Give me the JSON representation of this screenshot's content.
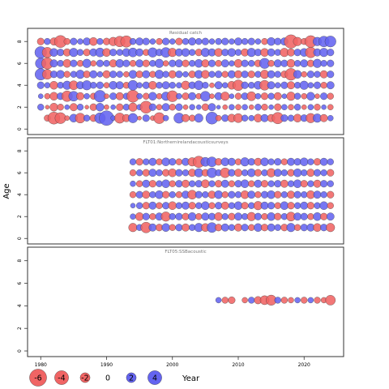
{
  "chart_data": {
    "type": "scatter",
    "subtype": "bubble-residuals",
    "ylabel": "Age",
    "xlabel": "Year",
    "xlim": [
      1978,
      2026
    ],
    "x_ticks": [
      1980,
      1990,
      2000,
      2010,
      2020
    ],
    "colors": {
      "positive": "#6464f0",
      "negative": "#f06464",
      "outline": "#3c3c3c"
    },
    "legend": {
      "placement": "bottom-left",
      "items": [
        {
          "label": "-6",
          "value": -6
        },
        {
          "label": "-4",
          "value": -4
        },
        {
          "label": "-2",
          "value": -2
        },
        {
          "label": "0",
          "value": 0
        },
        {
          "label": "2",
          "value": 2
        },
        {
          "label": "4",
          "value": 4
        }
      ]
    },
    "panels": [
      {
        "title": "Residual catch",
        "ylim": [
          -0.5,
          9.2
        ],
        "y_ticks": [
          0,
          2,
          4,
          6,
          8
        ],
        "year_start": 1980,
        "ages": [
          1,
          2,
          3,
          4,
          5,
          6,
          7,
          8
        ],
        "residuals": [
          [
            0,
            0,
            0,
            0,
            0,
            0,
            0,
            0,
            0,
            0,
            0,
            0,
            0,
            0,
            0,
            0,
            0,
            0,
            0,
            0,
            0,
            0,
            0,
            0,
            0,
            0,
            0,
            0,
            0,
            0,
            0,
            0,
            0,
            0,
            0,
            0,
            0,
            0,
            0,
            0,
            0,
            0,
            0,
            0,
            0
          ],
          [
            0,
            -0.5,
            -1.8,
            -1.5,
            -0.3,
            0.8,
            -1.2,
            0.5,
            -0.6,
            1.4,
            2.6,
            0.3,
            -1.3,
            -0.7,
            1.1,
            -0.2,
            0.6,
            -0.3,
            -1.5,
            0.4,
            0,
            1.3,
            -0.7,
            -0.5,
            0.9,
            0,
            1.8,
            -0.4,
            0.6,
            -0.8,
            -1,
            0.5,
            0.4,
            -0.8,
            0.7,
            -0.7,
            -1.6,
            0.6,
            0.5,
            -0.8,
            0.6,
            -1.1,
            0.9,
            -0.7,
            0.4
          ],
          [
            0.5,
            -0.2,
            -0.8,
            -0.5,
            0.3,
            -0.7,
            0.5,
            -0.2,
            -0.6,
            0.8,
            -0.3,
            0.3,
            -0.6,
            0.5,
            -0.9,
            0.4,
            -1.8,
            0.6,
            -0.4,
            0.7,
            -0.5,
            0.6,
            -0.3,
            0.4,
            0.3,
            -0.6,
            0.7,
            0.2,
            -0.3,
            0.4,
            -0.4,
            0.4,
            -0.3,
            0.5,
            -0.5,
            0.3,
            -0.6,
            0.4,
            -0.4,
            0.5,
            -0.3,
            0.4,
            -0.5,
            0.3,
            -0.4
          ],
          [
            0.3,
            -0.4,
            -0.8,
            0.6,
            -1.4,
            1.2,
            -0.7,
            0.4,
            -0.5,
            1.7,
            -0.3,
            0.6,
            -0.7,
            0.5,
            -1.8,
            0.4,
            -0.5,
            0.8,
            -0.4,
            0.9,
            -1.5,
            0.4,
            -0.6,
            0.7,
            -0.4,
            1.2,
            -0.3,
            0.7,
            -0.9,
            0.3,
            -0.5,
            0.6,
            -1,
            0.4,
            -0.6,
            0.5,
            -0.7,
            0.3,
            -0.9,
            0.5,
            -0.4,
            0.8,
            -0.3,
            0.6,
            -0.5
          ],
          [
            0.6,
            0.4,
            -0.8,
            0.5,
            0.9,
            -1,
            0.7,
            1.1,
            0.5,
            0.6,
            -0.4,
            0.8,
            0.7,
            -0.5,
            1.2,
            0.4,
            0.6,
            -0.8,
            0.5,
            0.7,
            0.5,
            0.4,
            -0.9,
            0.6,
            1,
            0.5,
            -0.3,
            0.7,
            0.4,
            -0.8,
            -1.4,
            0.6,
            0.5,
            0.8,
            -1.2,
            0.7,
            0.4,
            0.6,
            -0.7,
            0.5,
            0.9,
            0.4,
            0.6,
            -0.5,
            0.7
          ],
          [
            1.6,
            -1.2,
            0.6,
            0.8,
            -0.5,
            0.5,
            0.9,
            -0.6,
            0.7,
            0.4,
            -0.7,
            0.6,
            0.5,
            -0.4,
            0.8,
            -0.6,
            0.7,
            -0.5,
            0.9,
            0.5,
            -0.7,
            0.6,
            0.4,
            -0.6,
            0.8,
            -0.8,
            0.5,
            0.6,
            -0.5,
            0.7,
            -0.7,
            0.6,
            -0.6,
            0.5,
            -0.9,
            0.7,
            0.5,
            -0.6,
            -1.7,
            0.8,
            -0.4,
            0.6,
            0.5,
            -0.7,
            0.6
          ],
          [
            1.4,
            -1.6,
            0.7,
            0.5,
            -0.8,
            0.6,
            -0.5,
            0.9,
            -0.4,
            0.6,
            0.5,
            -0.7,
            0.8,
            0.6,
            -0.5,
            0.7,
            -0.6,
            0.5,
            0.9,
            -0.4,
            0.6,
            0.7,
            -0.6,
            0.5,
            0.8,
            -0.7,
            0.6,
            -0.5,
            0.7,
            0.4,
            -0.8,
            0.6,
            0.5,
            -0.6,
            1.3,
            -0.5,
            0.7,
            0.6,
            -0.8,
            0.5,
            0.7,
            -0.6,
            0.9,
            0.5,
            0.6
          ],
          [
            1.7,
            -1.3,
            0.8,
            0.6,
            -0.7,
            0.9,
            0.5,
            -0.6,
            0.7,
            1,
            -0.8,
            0.6,
            0.5,
            0.8,
            1,
            0.7,
            -0.5,
            1.1,
            0.6,
            1.2,
            -0.9,
            0.7,
            0.8,
            0.5,
            -0.6,
            0.9,
            0.7,
            -0.8,
            0.6,
            0.8,
            0.5,
            -0.7,
            0.9,
            0.6,
            -0.8,
            0.7,
            0.5,
            -0.9,
            -0.7,
            0.6,
            0.8,
            -1.4,
            0.7,
            0.9,
            0.6
          ],
          [
            -0.6,
            0.5,
            -0.7,
            -1.8,
            -0.5,
            0.6,
            0.4,
            0.7,
            -0.8,
            0.5,
            -0.6,
            -0.9,
            -1.4,
            -1.6,
            0.5,
            0.7,
            0.6,
            0.4,
            -0.5,
            0.6,
            0.4,
            -0.6,
            0.5,
            0.7,
            0.5,
            0.6,
            0.4,
            0.5,
            0.6,
            0.4,
            0.7,
            0.5,
            0.6,
            0.4,
            -0.5,
            0.8,
            0.6,
            0.7,
            -2.2,
            -0.9,
            -0.5,
            -1.7,
            0.9,
            1.4,
            1.5
          ]
        ]
      },
      {
        "title": "FLT01:Northernirelandacousticsurveys",
        "ylim": [
          -0.5,
          9.2
        ],
        "y_ticks": [
          0,
          2,
          4,
          6,
          8
        ],
        "year_start": 1994,
        "ages": [
          1,
          2,
          3,
          4,
          5,
          6,
          7,
          8
        ],
        "residuals": [
          [
            0,
            0,
            0,
            0,
            0,
            0,
            0,
            0,
            0,
            0,
            0,
            0,
            0,
            0,
            0,
            0,
            0,
            0,
            0,
            0,
            0,
            0,
            0,
            0,
            0,
            0,
            0,
            0,
            0,
            0,
            0
          ],
          [
            -0.9,
            0.5,
            -1.4,
            0.7,
            -0.6,
            0.8,
            -0.5,
            0.6,
            -0.7,
            0.5,
            0.9,
            -0.8,
            1.2,
            -0.6,
            0.7,
            0.5,
            -0.7,
            0.6,
            -0.5,
            0.8,
            -0.6,
            0.7,
            0.5,
            -0.6,
            0.9,
            -0.5,
            0.6,
            0.7,
            -0.8,
            0.6,
            -0.9
          ],
          [
            0.4,
            -0.8,
            0.6,
            -0.5,
            0.7,
            -1.1,
            0.5,
            0.6,
            -0.6,
            0.8,
            -0.5,
            0.7,
            0.6,
            -0.8,
            0.5,
            -0.6,
            0.7,
            0.5,
            -0.9,
            0.6,
            -0.5,
            0.8,
            -0.6,
            0.5,
            -1,
            0.7,
            0.6,
            -0.5,
            0.8,
            -0.6,
            0.7
          ],
          [
            0.3,
            0.5,
            -0.6,
            0.7,
            -0.5,
            0.6,
            -0.8,
            0.5,
            0.7,
            -0.6,
            0.5,
            0.8,
            -0.5,
            0.6,
            -0.7,
            0.5,
            0.8,
            -0.6,
            0.5,
            -0.9,
            0.7,
            0.6,
            -0.5,
            0.8,
            -0.6,
            0.5,
            0.7,
            -0.6,
            0.5,
            0.8,
            -0.5
          ],
          [
            -0.5,
            0.6,
            -0.7,
            0.5,
            0.8,
            -0.6,
            0.5,
            -0.5,
            0.7,
            -1,
            0.6,
            0.5,
            -0.7,
            0.8,
            -0.5,
            0.6,
            0.5,
            -0.8,
            0.7,
            -0.5,
            0.6,
            0.8,
            -0.6,
            0.5,
            -0.7,
            0.6,
            0.5,
            -0.8,
            0.7,
            0.5,
            -0.6
          ],
          [
            0.4,
            -0.5,
            0.7,
            -0.6,
            0.5,
            0.8,
            -0.5,
            0.6,
            -0.7,
            0.5,
            0.6,
            -0.8,
            0.5,
            -0.6,
            0.7,
            -0.5,
            0.6,
            0.8,
            -0.5,
            0.7,
            -0.6,
            0.5,
            0.6,
            -0.7,
            0.5,
            0.8,
            -0.6,
            0.5,
            -0.7,
            0.6,
            0.5
          ],
          [
            -0.5,
            0.5,
            -0.6,
            0.7,
            0.5,
            -0.6,
            -0.8,
            0.6,
            0.5,
            -0.7,
            0.9,
            -0.6,
            1.2,
            0.5,
            -1.2,
            0.6,
            -0.7,
            0.5,
            0.8,
            -0.6,
            0.5,
            -0.9,
            0.7,
            0.5,
            -0.6,
            0.8,
            0.5,
            -0.7,
            0.6,
            0.5,
            -0.6
          ],
          [
            0.5,
            -0.6,
            0.5,
            0.7,
            -0.5,
            0.8,
            0.6,
            -0.5,
            0.7,
            -0.9,
            -1.6,
            1,
            1.2,
            -0.6,
            0.8,
            0.7,
            -0.5,
            0.9,
            0.6,
            -0.7,
            0.8,
            0.5,
            0.6,
            -0.5,
            0.7,
            0.6,
            0.8,
            0.5,
            -0.6,
            0.7,
            0.5
          ],
          [
            0,
            0,
            0,
            0,
            0,
            0,
            0,
            0,
            0,
            0,
            0,
            0,
            0,
            0,
            0,
            0,
            0,
            0,
            0,
            0,
            0,
            0,
            0,
            0,
            0,
            0,
            0,
            0,
            0,
            0,
            0
          ]
        ]
      },
      {
        "title": "FLT05:SSBacoustic",
        "ylim": [
          -0.5,
          9.2
        ],
        "y_ticks": [
          0,
          2,
          4,
          6,
          8
        ],
        "year_start": 2007,
        "ages": [
          4.5
        ],
        "residuals": [
          [
            0.4,
            -0.5,
            -0.6,
            0,
            -0.4,
            0.5,
            -0.7,
            -1,
            -1.3,
            0.5,
            -0.5,
            -0.4,
            0.4,
            -0.5,
            0.4,
            -0.5,
            -0.4,
            -1.2
          ]
        ]
      }
    ]
  }
}
